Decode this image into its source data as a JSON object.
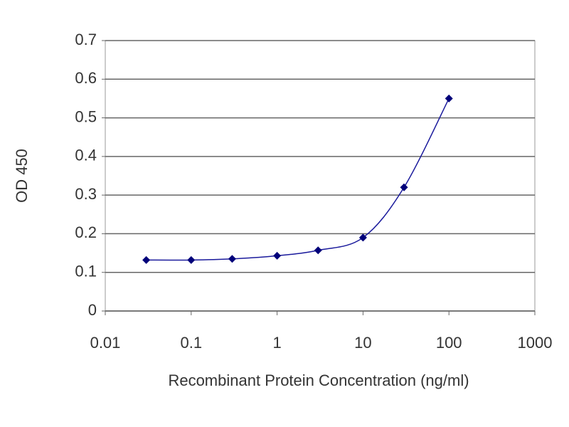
{
  "chart_data": {
    "type": "line",
    "x_scale": "log",
    "grid": true,
    "y_label": "OD 450",
    "x_label": "Recombinant Protein Concentration (ng/ml)",
    "x": [
      0.03,
      0.1,
      0.3,
      1,
      3,
      10,
      30,
      100
    ],
    "series": [
      {
        "color": "#1a1a9c",
        "values": [
          0.132,
          0.132,
          0.135,
          0.143,
          0.157,
          0.19,
          0.32,
          0.55
        ]
      }
    ],
    "xlim": [
      0.01,
      1000
    ],
    "xticks": [
      0.01,
      0.1,
      1,
      10,
      100,
      1000
    ],
    "ylim": [
      0,
      0.7
    ],
    "yticks": [
      0,
      0.1,
      0.2,
      0.3,
      0.4,
      0.5,
      0.6,
      0.7
    ]
  }
}
